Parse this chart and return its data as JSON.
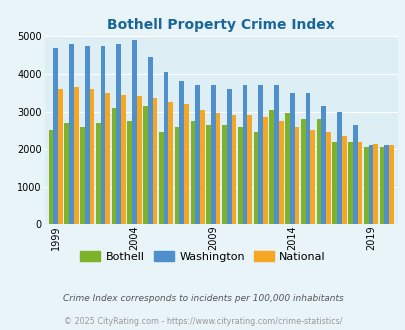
{
  "title": "Bothell Property Crime Index",
  "years": [
    1999,
    2000,
    2001,
    2002,
    2003,
    2004,
    2005,
    2006,
    2007,
    2008,
    2009,
    2010,
    2011,
    2012,
    2013,
    2014,
    2015,
    2016,
    2017,
    2018,
    2019,
    2020
  ],
  "bothell": [
    2500,
    2700,
    2600,
    2700,
    3100,
    2750,
    3150,
    2450,
    2600,
    2750,
    2650,
    2650,
    2600,
    2450,
    3050,
    2950,
    2800,
    2800,
    2200,
    2200,
    2050,
    2050
  ],
  "washington": [
    4700,
    4800,
    4750,
    4750,
    4800,
    4900,
    4450,
    4050,
    3800,
    3700,
    3700,
    3600,
    3700,
    3700,
    3700,
    3500,
    3500,
    3150,
    3000,
    2650,
    2100,
    2100
  ],
  "national": [
    3600,
    3650,
    3600,
    3500,
    3450,
    3400,
    3350,
    3250,
    3200,
    3050,
    2950,
    2900,
    2900,
    2850,
    2750,
    2600,
    2500,
    2450,
    2350,
    2200,
    2150,
    2100
  ],
  "bothell_color": "#7db32a",
  "washington_color": "#4f8fcc",
  "national_color": "#f5a623",
  "background_color": "#e8f4f8",
  "plot_bg_color": "#ddeef5",
  "title_color": "#1a6699",
  "ylim": [
    0,
    5000
  ],
  "yticks": [
    0,
    1000,
    2000,
    3000,
    4000,
    5000
  ],
  "subtitle": "Crime Index corresponds to incidents per 100,000 inhabitants",
  "footer": "© 2025 CityRating.com - https://www.cityrating.com/crime-statistics/",
  "subtitle_color": "#555555",
  "footer_color": "#999999",
  "legend_labels": [
    "Bothell",
    "Washington",
    "National"
  ],
  "xtick_years": [
    1999,
    2004,
    2009,
    2014,
    2019
  ]
}
